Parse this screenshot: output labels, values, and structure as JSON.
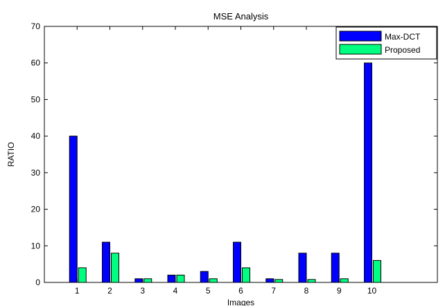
{
  "chart_data": {
    "type": "bar",
    "title": "MSE Analysis",
    "xlabel": "Images",
    "ylabel": "RATIO",
    "categories": [
      "1",
      "2",
      "3",
      "4",
      "5",
      "6",
      "7",
      "8",
      "9",
      "10"
    ],
    "xlim": [
      0,
      12
    ],
    "ylim": [
      0,
      70
    ],
    "yticks": [
      0,
      10,
      20,
      30,
      40,
      50,
      60,
      70
    ],
    "legend_position": "top-right",
    "grid": false,
    "series": [
      {
        "name": "Max-DCT",
        "color": "#0000ff",
        "values": [
          40,
          11,
          1,
          2,
          3,
          11,
          1,
          8,
          8,
          60
        ]
      },
      {
        "name": "Proposed",
        "color": "#00ff80",
        "values": [
          4,
          8,
          1,
          2,
          1,
          4,
          0.8,
          0.8,
          1,
          6
        ]
      }
    ]
  }
}
